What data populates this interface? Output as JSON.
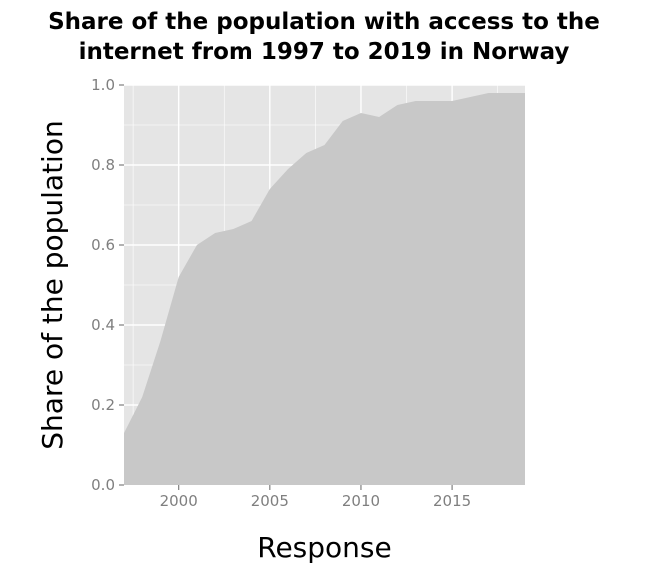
{
  "chart_data": {
    "type": "area",
    "title": "Share of the population with access to the internet from 1997 to 2019 in Norway",
    "title_lines": [
      "Share of the population with access to the",
      "internet from 1997 to 2019 in Norway"
    ],
    "xlabel": "Response",
    "ylabel": "Share of the population",
    "x": [
      1997,
      1998,
      1999,
      2000,
      2001,
      2002,
      2003,
      2004,
      2005,
      2006,
      2007,
      2008,
      2009,
      2010,
      2011,
      2012,
      2013,
      2014,
      2015,
      2016,
      2017,
      2018,
      2019
    ],
    "values": [
      0.13,
      0.22,
      0.36,
      0.52,
      0.6,
      0.63,
      0.64,
      0.66,
      0.74,
      0.79,
      0.83,
      0.85,
      0.91,
      0.93,
      0.92,
      0.95,
      0.96,
      0.96,
      0.96,
      0.97,
      0.98,
      0.98,
      0.98
    ],
    "xlim": [
      1997,
      2019
    ],
    "ylim": [
      0,
      1.0
    ],
    "x_ticks": [
      2000,
      2005,
      2010,
      2015
    ],
    "x_tick_labels": [
      "2000",
      "2005",
      "2010",
      "2015"
    ],
    "y_ticks": [
      0.0,
      0.2,
      0.4,
      0.6,
      0.8,
      1.0
    ],
    "y_tick_labels": [
      "0.0",
      "0.2",
      "0.4",
      "0.6",
      "0.8",
      "1.0"
    ],
    "grid": true,
    "legend": "none",
    "colors": {
      "panel": "#e5e5e5",
      "grid": "#ffffff",
      "fill": "#c8c8c8",
      "tick": "#7f7f7f",
      "text": "#000000"
    }
  }
}
